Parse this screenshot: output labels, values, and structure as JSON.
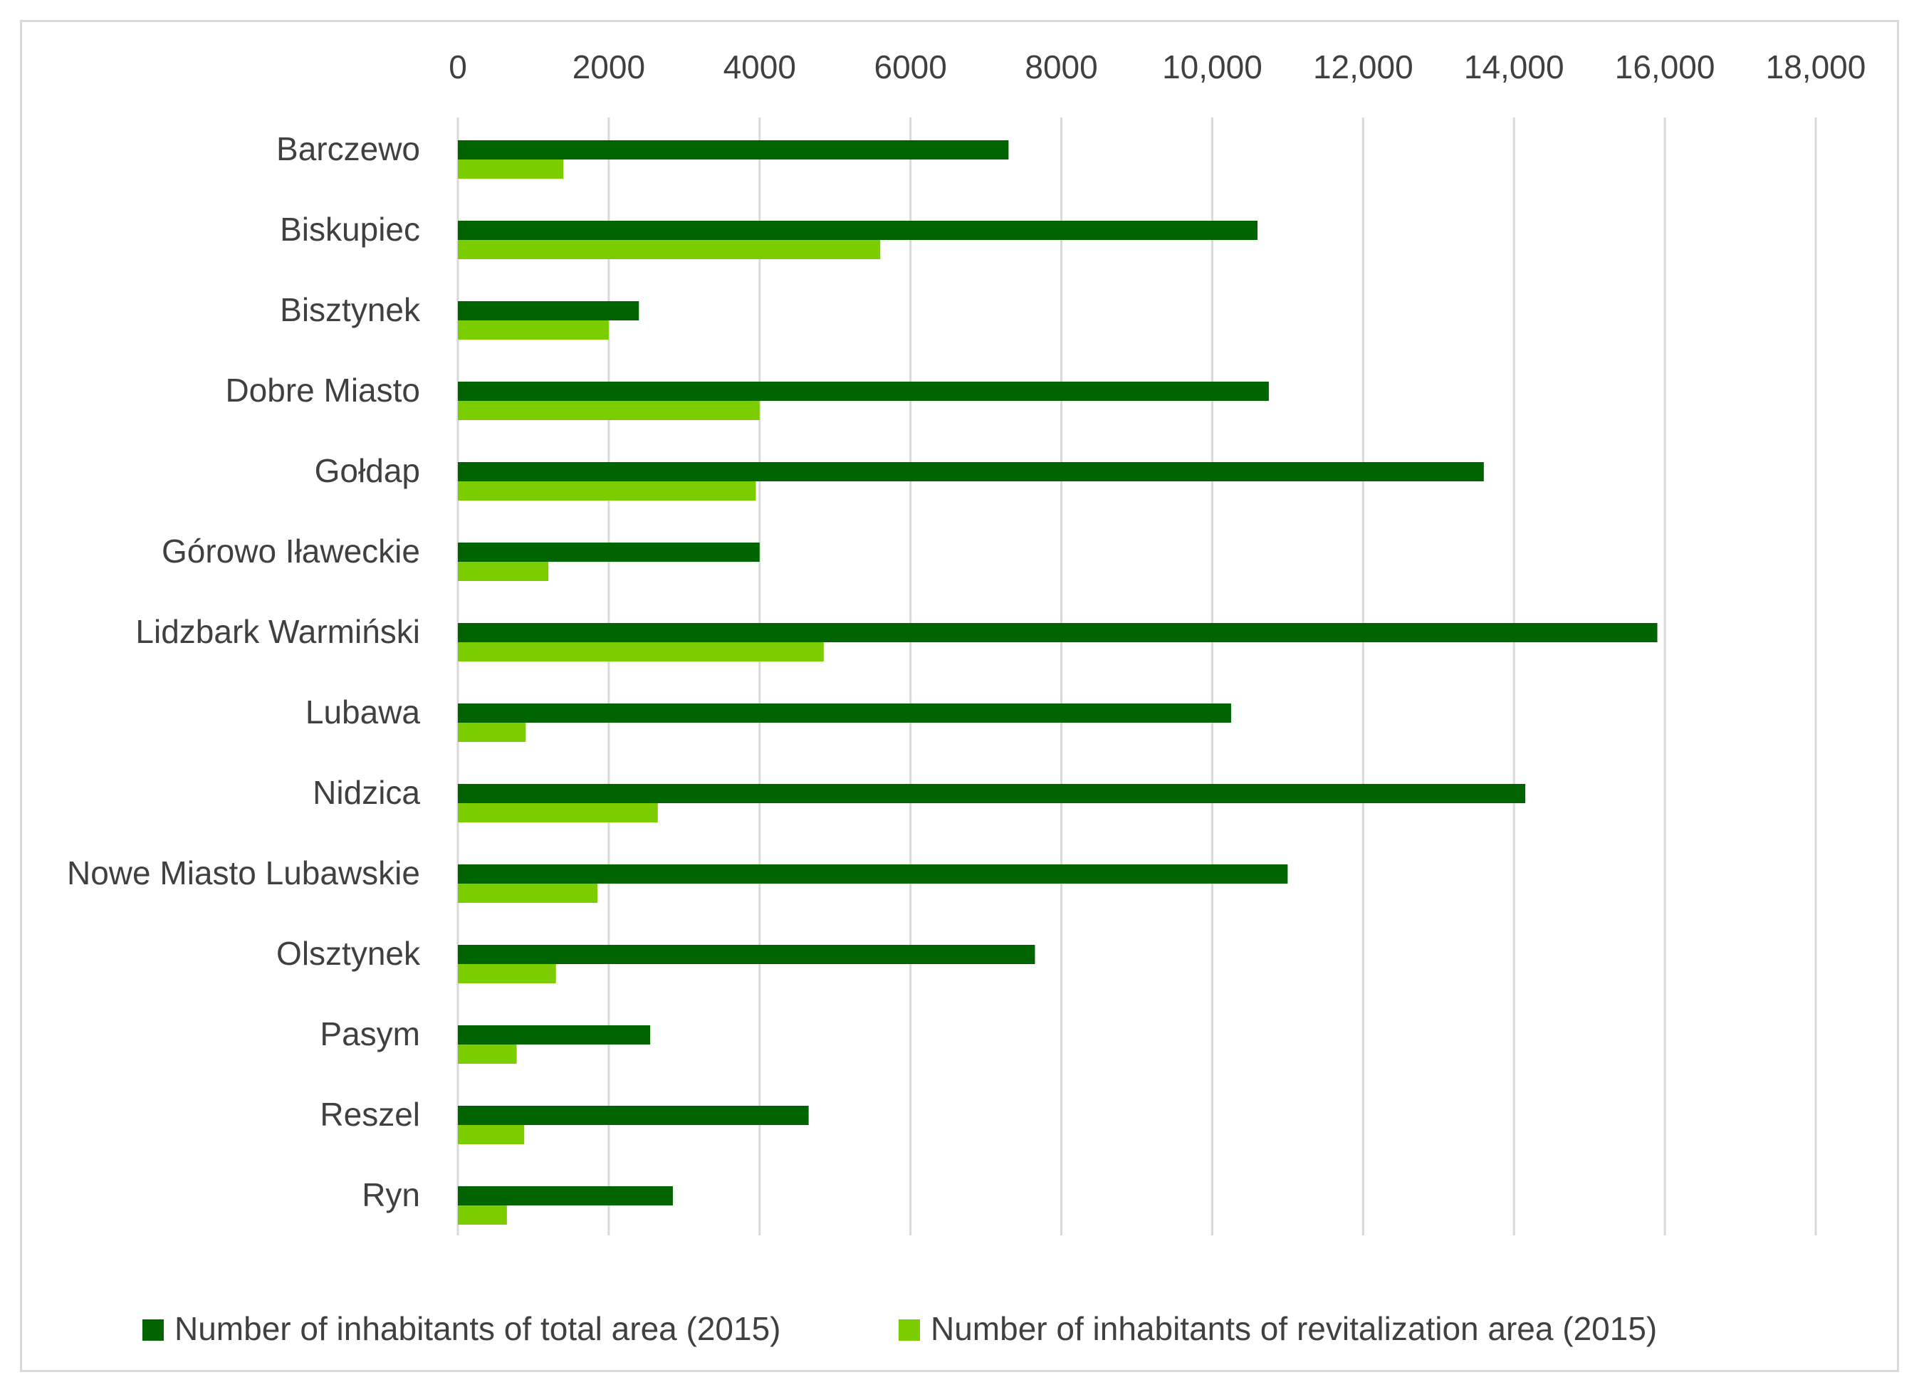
{
  "chart_data": {
    "type": "bar",
    "orientation": "horizontal",
    "title": "",
    "xlabel": "",
    "ylabel": "",
    "xlim": [
      0,
      18000
    ],
    "x_ticks": [
      "0",
      "2000",
      "4000",
      "6000",
      "8000",
      "10,000",
      "12,000",
      "14,000",
      "16,000",
      "18,000"
    ],
    "x_tick_values": [
      0,
      2000,
      4000,
      6000,
      8000,
      10000,
      12000,
      14000,
      16000,
      18000
    ],
    "axis_position": "top",
    "grid": true,
    "legend_position": "bottom",
    "categories": [
      "Barczewo",
      "Biskupiec",
      "Bisztynek",
      "Dobre Miasto",
      "Gołdap",
      "Górowo Iławeckie",
      "Lidzbark Warmiński",
      "Lubawa",
      "Nidzica",
      "Nowe Miasto Lubawskie",
      "Olsztynek",
      "Pasym",
      "Reszel",
      "Ryn"
    ],
    "series": [
      {
        "name": "Number of inhabitants of total area (2015)",
        "color": "#006400",
        "values": [
          7300,
          10600,
          2400,
          10750,
          13600,
          4000,
          15900,
          10250,
          14150,
          11000,
          7650,
          2550,
          4650,
          2850
        ]
      },
      {
        "name": "Number of inhabitants of revitalization area (2015)",
        "color": "#7ccd00",
        "values": [
          1400,
          5600,
          2000,
          4000,
          3950,
          1200,
          4850,
          900,
          2650,
          1850,
          1300,
          780,
          880,
          650
        ]
      }
    ]
  }
}
